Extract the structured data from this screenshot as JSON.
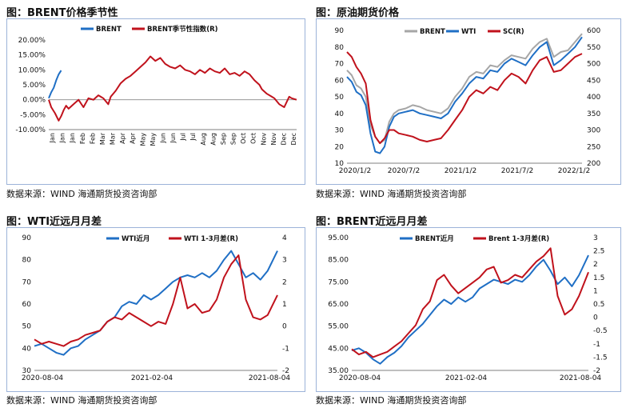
{
  "charts": [
    {
      "panel_title": "图：BRENT价格季节性",
      "source": "数据来源：WIND    海通期货投资咨询部",
      "chart_data": {
        "type": "line",
        "x_ticks": [
          "Jan",
          "Jan",
          "Jan",
          "Feb",
          "Feb",
          "Mar",
          "Mar",
          "Apr",
          "Apr",
          "May",
          "May",
          "Jun",
          "Jun",
          "Jul",
          "Jul",
          "Aug",
          "Aug",
          "Sep",
          "Sep",
          "Oct",
          "Oct",
          "Nov",
          "Nov",
          "Dec",
          "Dec"
        ],
        "y_ticks": [
          "20.00%",
          "15.00%",
          "10.00%",
          "5.00%",
          "0.00%",
          "-5.00%",
          "-10.00%"
        ],
        "ylim": [
          -10,
          20
        ],
        "legend": "top",
        "series": [
          {
            "name": "BRENT",
            "color": "#1f6fc5",
            "axis": "left",
            "x": [
              0.0,
              0.01,
              0.02,
              0.03,
              0.04,
              0.05
            ],
            "y": [
              0.5,
              2.5,
              4.0,
              6.5,
              8.5,
              9.8
            ]
          },
          {
            "name": "BRENT季节性指数(R)",
            "color": "#c0121c",
            "axis": "left",
            "x": [
              0.0,
              0.01,
              0.025,
              0.04,
              0.05,
              0.06,
              0.07,
              0.08,
              0.1,
              0.12,
              0.14,
              0.16,
              0.18,
              0.2,
              0.22,
              0.24,
              0.25,
              0.27,
              0.29,
              0.31,
              0.33,
              0.35,
              0.37,
              0.39,
              0.41,
              0.43,
              0.45,
              0.47,
              0.49,
              0.51,
              0.53,
              0.55,
              0.57,
              0.59,
              0.61,
              0.63,
              0.65,
              0.67,
              0.69,
              0.71,
              0.73,
              0.75,
              0.77,
              0.79,
              0.81,
              0.83,
              0.85,
              0.86,
              0.88,
              0.9,
              0.91,
              0.93,
              0.95,
              0.97,
              0.98,
              1.0
            ],
            "y": [
              0.0,
              -2.5,
              -4.5,
              -7.0,
              -5.5,
              -3.5,
              -2.0,
              -3.0,
              -1.5,
              0.0,
              -2.5,
              0.5,
              0.0,
              1.5,
              0.5,
              -1.5,
              1.0,
              3.0,
              5.5,
              7.0,
              8.0,
              9.5,
              11.0,
              12.5,
              14.5,
              13.0,
              14.0,
              12.0,
              11.0,
              10.5,
              11.5,
              10.0,
              9.5,
              8.5,
              10.0,
              9.0,
              10.5,
              9.5,
              9.0,
              10.5,
              8.5,
              9.0,
              8.0,
              9.5,
              8.5,
              6.5,
              5.0,
              3.5,
              2.0,
              1.0,
              0.5,
              -1.5,
              -2.5,
              1.0,
              0.5,
              0.0
            ]
          }
        ]
      }
    },
    {
      "panel_title": "图：原油期货价格",
      "source": "数据来源：WIND    海通期货投资咨询部",
      "chart_data": {
        "type": "line",
        "x_ticks": [
          "2020/1/2",
          "2020/7/2",
          "2021/1/2",
          "2021/7/2",
          "2022/1/2"
        ],
        "y_ticks": [
          "90",
          "80",
          "70",
          "60",
          "50",
          "40",
          "30",
          "20",
          "10"
        ],
        "y2_ticks": [
          "600",
          "550",
          "500",
          "450",
          "400",
          "350",
          "300",
          "250",
          "200"
        ],
        "ylim": [
          10,
          90
        ],
        "y2lim": [
          200,
          600
        ],
        "legend": "top-right",
        "series": [
          {
            "name": "BRENT",
            "color": "#a6a6a6",
            "axis": "left",
            "x": [
              0.0,
              0.02,
              0.04,
              0.06,
              0.08,
              0.1,
              0.12,
              0.14,
              0.16,
              0.18,
              0.2,
              0.22,
              0.25,
              0.28,
              0.31,
              0.34,
              0.37,
              0.4,
              0.43,
              0.46,
              0.49,
              0.52,
              0.55,
              0.58,
              0.61,
              0.64,
              0.67,
              0.7,
              0.73,
              0.76,
              0.79,
              0.82,
              0.85,
              0.88,
              0.91,
              0.94,
              0.97,
              1.0
            ],
            "y": [
              66,
              63,
              57,
              55,
              50,
              33,
              26,
              22,
              24,
              35,
              40,
              42,
              43,
              45,
              44,
              42,
              41,
              40,
              43,
              50,
              55,
              62,
              65,
              64,
              69,
              68,
              72,
              75,
              74,
              73,
              79,
              83,
              85,
              74,
              77,
              78,
              83,
              88
            ]
          },
          {
            "name": "WTI",
            "color": "#1f6fc5",
            "axis": "left",
            "x": [
              0.0,
              0.02,
              0.04,
              0.06,
              0.08,
              0.1,
              0.12,
              0.14,
              0.16,
              0.18,
              0.2,
              0.22,
              0.25,
              0.28,
              0.31,
              0.34,
              0.37,
              0.4,
              0.43,
              0.46,
              0.49,
              0.52,
              0.55,
              0.58,
              0.61,
              0.64,
              0.67,
              0.7,
              0.73,
              0.76,
              0.79,
              0.82,
              0.85,
              0.88,
              0.91,
              0.94,
              0.97,
              1.0
            ],
            "y": [
              62,
              59,
              53,
              51,
              45,
              28,
              17,
              16,
              20,
              32,
              38,
              40,
              41,
              42,
              40,
              39,
              38,
              37,
              40,
              47,
              52,
              58,
              62,
              61,
              66,
              65,
              70,
              73,
              71,
              69,
              75,
              80,
              83,
              69,
              72,
              76,
              80,
              86
            ]
          },
          {
            "name": "SC(R)",
            "color": "#c0121c",
            "axis": "right",
            "x": [
              0.0,
              0.02,
              0.04,
              0.06,
              0.08,
              0.1,
              0.12,
              0.14,
              0.16,
              0.18,
              0.2,
              0.22,
              0.25,
              0.28,
              0.31,
              0.34,
              0.37,
              0.4,
              0.43,
              0.46,
              0.49,
              0.52,
              0.55,
              0.58,
              0.61,
              0.64,
              0.67,
              0.7,
              0.73,
              0.76,
              0.79,
              0.82,
              0.85,
              0.88,
              0.91,
              0.94,
              0.97,
              1.0
            ],
            "y": [
              535,
              520,
              490,
              470,
              440,
              330,
              280,
              260,
              275,
              300,
              300,
              290,
              285,
              280,
              270,
              265,
              270,
              275,
              300,
              330,
              360,
              400,
              420,
              410,
              430,
              420,
              450,
              470,
              460,
              440,
              480,
              510,
              520,
              475,
              480,
              500,
              520,
              530
            ]
          }
        ]
      }
    },
    {
      "panel_title": "图：WTI近远月月差",
      "source": "数据来源：WIND    海通期货投资咨询部",
      "chart_data": {
        "type": "line",
        "x_ticks": [
          "2020-08-04",
          "2021-02-04",
          "2021-08-04"
        ],
        "y_ticks": [
          "90",
          "80",
          "70",
          "60",
          "50",
          "40",
          "30"
        ],
        "y2_ticks": [
          "4",
          "3",
          "2",
          "1",
          "0",
          "-1",
          "-2"
        ],
        "ylim": [
          30,
          90
        ],
        "y2lim": [
          -2,
          4
        ],
        "legend": "top",
        "series": [
          {
            "name": "WTI近月",
            "color": "#1f6fc5",
            "axis": "left",
            "x": [
              0.0,
              0.03,
              0.06,
              0.09,
              0.12,
              0.15,
              0.18,
              0.21,
              0.24,
              0.27,
              0.3,
              0.33,
              0.36,
              0.39,
              0.42,
              0.45,
              0.48,
              0.51,
              0.54,
              0.57,
              0.6,
              0.63,
              0.66,
              0.69,
              0.72,
              0.75,
              0.78,
              0.81,
              0.84,
              0.87,
              0.9,
              0.93,
              0.96,
              1.0
            ],
            "y": [
              41,
              42,
              40,
              38,
              37,
              40,
              41,
              44,
              46,
              48,
              52,
              54,
              59,
              61,
              60,
              64,
              62,
              64,
              67,
              70,
              72,
              73,
              72,
              74,
              72,
              75,
              80,
              84,
              78,
              72,
              74,
              71,
              75,
              84
            ]
          },
          {
            "name": "WTI 1-3月差(R)",
            "color": "#c0121c",
            "axis": "right",
            "x": [
              0.0,
              0.03,
              0.06,
              0.09,
              0.12,
              0.15,
              0.18,
              0.21,
              0.24,
              0.27,
              0.3,
              0.33,
              0.36,
              0.39,
              0.42,
              0.45,
              0.48,
              0.51,
              0.54,
              0.57,
              0.6,
              0.63,
              0.66,
              0.69,
              0.72,
              0.75,
              0.78,
              0.81,
              0.84,
              0.87,
              0.9,
              0.93,
              0.96,
              1.0
            ],
            "y": [
              -0.6,
              -0.8,
              -0.7,
              -0.8,
              -0.9,
              -0.7,
              -0.6,
              -0.4,
              -0.3,
              -0.2,
              0.2,
              0.4,
              0.3,
              0.6,
              0.4,
              0.2,
              0.0,
              0.2,
              0.1,
              1.0,
              2.2,
              0.8,
              1.0,
              0.6,
              0.7,
              1.2,
              2.2,
              2.8,
              3.2,
              1.2,
              0.4,
              0.3,
              0.5,
              1.4
            ]
          }
        ]
      }
    },
    {
      "panel_title": "图：BRENT近远月月差",
      "source": "数据来源：WIND    海通期货投资咨询部",
      "chart_data": {
        "type": "line",
        "x_ticks": [
          "2020-08-04",
          "2021-02-04",
          "2021-08-04"
        ],
        "y_ticks": [
          "95.00",
          "85.00",
          "75.00",
          "65.00",
          "55.00",
          "45.00",
          "35.00"
        ],
        "y2_ticks": [
          "3",
          "2.5",
          "2",
          "1.5",
          "1",
          "0.5",
          "0",
          "-0.5",
          "-1",
          "-1.5",
          "-2"
        ],
        "ylim": [
          35,
          95
        ],
        "y2lim": [
          -2,
          3
        ],
        "legend": "top",
        "series": [
          {
            "name": "BRENT近月",
            "color": "#1f6fc5",
            "axis": "left",
            "x": [
              0.0,
              0.03,
              0.06,
              0.09,
              0.12,
              0.15,
              0.18,
              0.21,
              0.24,
              0.27,
              0.3,
              0.33,
              0.36,
              0.39,
              0.42,
              0.45,
              0.48,
              0.51,
              0.54,
              0.57,
              0.6,
              0.63,
              0.66,
              0.69,
              0.72,
              0.75,
              0.78,
              0.81,
              0.84,
              0.87,
              0.9,
              0.93,
              0.96,
              1.0
            ],
            "y": [
              44,
              45,
              43,
              40,
              38,
              41,
              43,
              46,
              50,
              53,
              56,
              60,
              64,
              67,
              65,
              68,
              66,
              68,
              72,
              74,
              76,
              75,
              74,
              76,
              75,
              78,
              82,
              85,
              80,
              74,
              77,
              73,
              78,
              87
            ]
          },
          {
            "name": "Brent 1-3月差(R)",
            "color": "#c0121c",
            "axis": "right",
            "x": [
              0.0,
              0.03,
              0.06,
              0.09,
              0.12,
              0.15,
              0.18,
              0.21,
              0.24,
              0.27,
              0.3,
              0.33,
              0.36,
              0.39,
              0.42,
              0.45,
              0.48,
              0.51,
              0.54,
              0.57,
              0.6,
              0.63,
              0.66,
              0.69,
              0.72,
              0.75,
              0.78,
              0.81,
              0.84,
              0.87,
              0.9,
              0.93,
              0.96,
              1.0
            ],
            "y": [
              -1.2,
              -1.4,
              -1.3,
              -1.5,
              -1.4,
              -1.3,
              -1.1,
              -0.9,
              -0.6,
              -0.3,
              0.3,
              0.6,
              1.4,
              1.6,
              1.2,
              0.9,
              1.1,
              1.3,
              1.5,
              1.8,
              1.9,
              1.3,
              1.4,
              1.6,
              1.5,
              1.8,
              2.1,
              2.3,
              2.6,
              0.8,
              0.1,
              0.3,
              0.8,
              1.7
            ]
          }
        ]
      }
    }
  ]
}
